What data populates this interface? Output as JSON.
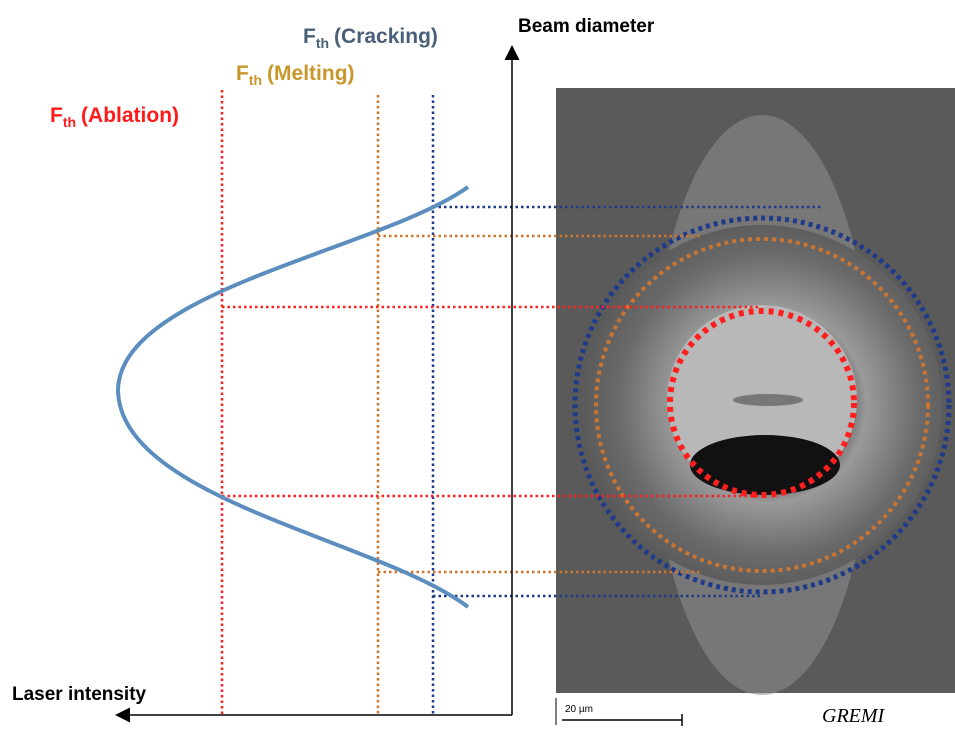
{
  "labels": {
    "cracking": {
      "symbol": "F",
      "subscript": "th",
      "text": "(Cracking)"
    },
    "melting": {
      "symbol": "F",
      "subscript": "th",
      "text": "(Melting)"
    },
    "ablation": {
      "symbol": "F",
      "subscript": "th",
      "text": "(Ablation)"
    }
  },
  "axes": {
    "y": "Beam diameter",
    "x": "Laser intensity"
  },
  "image": {
    "scale_bar": "20 µm",
    "logo": "GREMI"
  }
}
